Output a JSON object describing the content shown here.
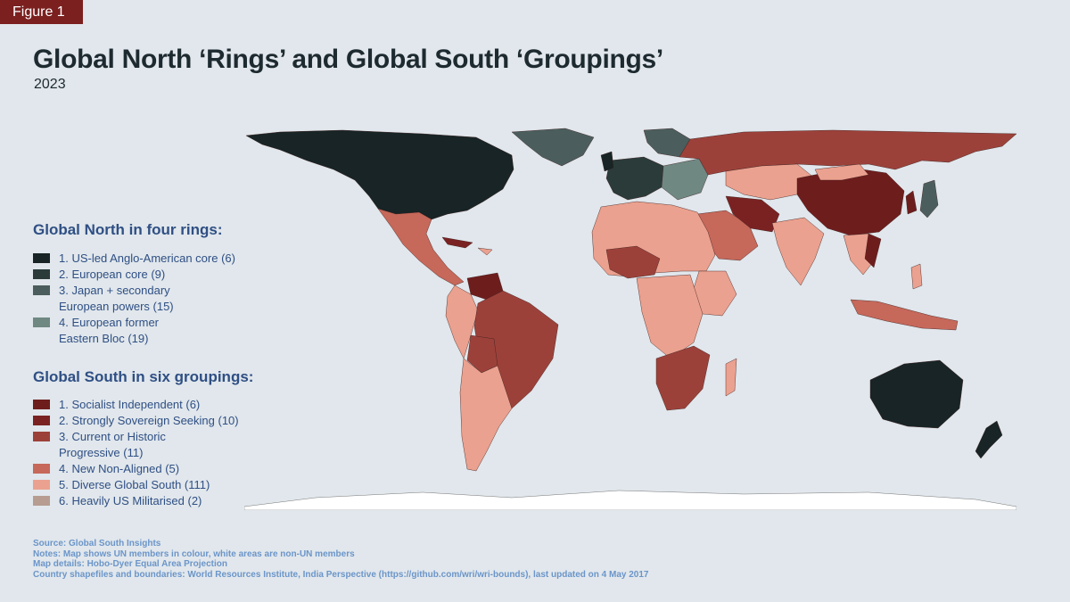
{
  "figure_tag": "Figure 1",
  "title": "Global North ‘Rings’ and Global South ‘Groupings’",
  "subtitle": "2023",
  "legend_north": {
    "heading": "Global North in four rings:",
    "items": [
      {
        "label": "1. US-led Anglo-American core (6)",
        "color": "#182425"
      },
      {
        "label": "2. European core (9)",
        "color": "#2a3b3a"
      },
      {
        "label": "3. Japan + secondary\nEuropean powers (15)",
        "color": "#4b5e5d"
      },
      {
        "label": "4. European former\nEastern Bloc (19)",
        "color": "#6f8882"
      }
    ]
  },
  "legend_south": {
    "heading": "Global South in six groupings:",
    "items": [
      {
        "label": "1. Socialist Independent (6)",
        "color": "#6e1d1d"
      },
      {
        "label": "2. Strongly Sovereign Seeking (10)",
        "color": "#7a2222"
      },
      {
        "label": "3. Current or Historic\nProgressive (11)",
        "color": "#9c413a"
      },
      {
        "label": "4. New Non-Aligned (5)",
        "color": "#c6685a"
      },
      {
        "label": "5. Diverse Global South (111)",
        "color": "#eba18f"
      },
      {
        "label": "6. Heavily US Militarised (2)",
        "color": "#b79c92"
      }
    ]
  },
  "notes": [
    "Source: Global South Insights",
    "Notes: Map shows UN members in colour, white areas are non-UN members",
    "Map details: Hobo-Dyer Equal Area Projection",
    "Country shapefiles and boundaries: World Resources Institute, India Perspective (https://github.com/wri/wri-bounds), last updated on 4 May 2017"
  ],
  "colors": {
    "background": "#e1e7ec",
    "accent": "#7b1f1f",
    "legend_text": "#2f4f84",
    "notes_text": "#6b95c9",
    "non_un": "#ffffff"
  }
}
